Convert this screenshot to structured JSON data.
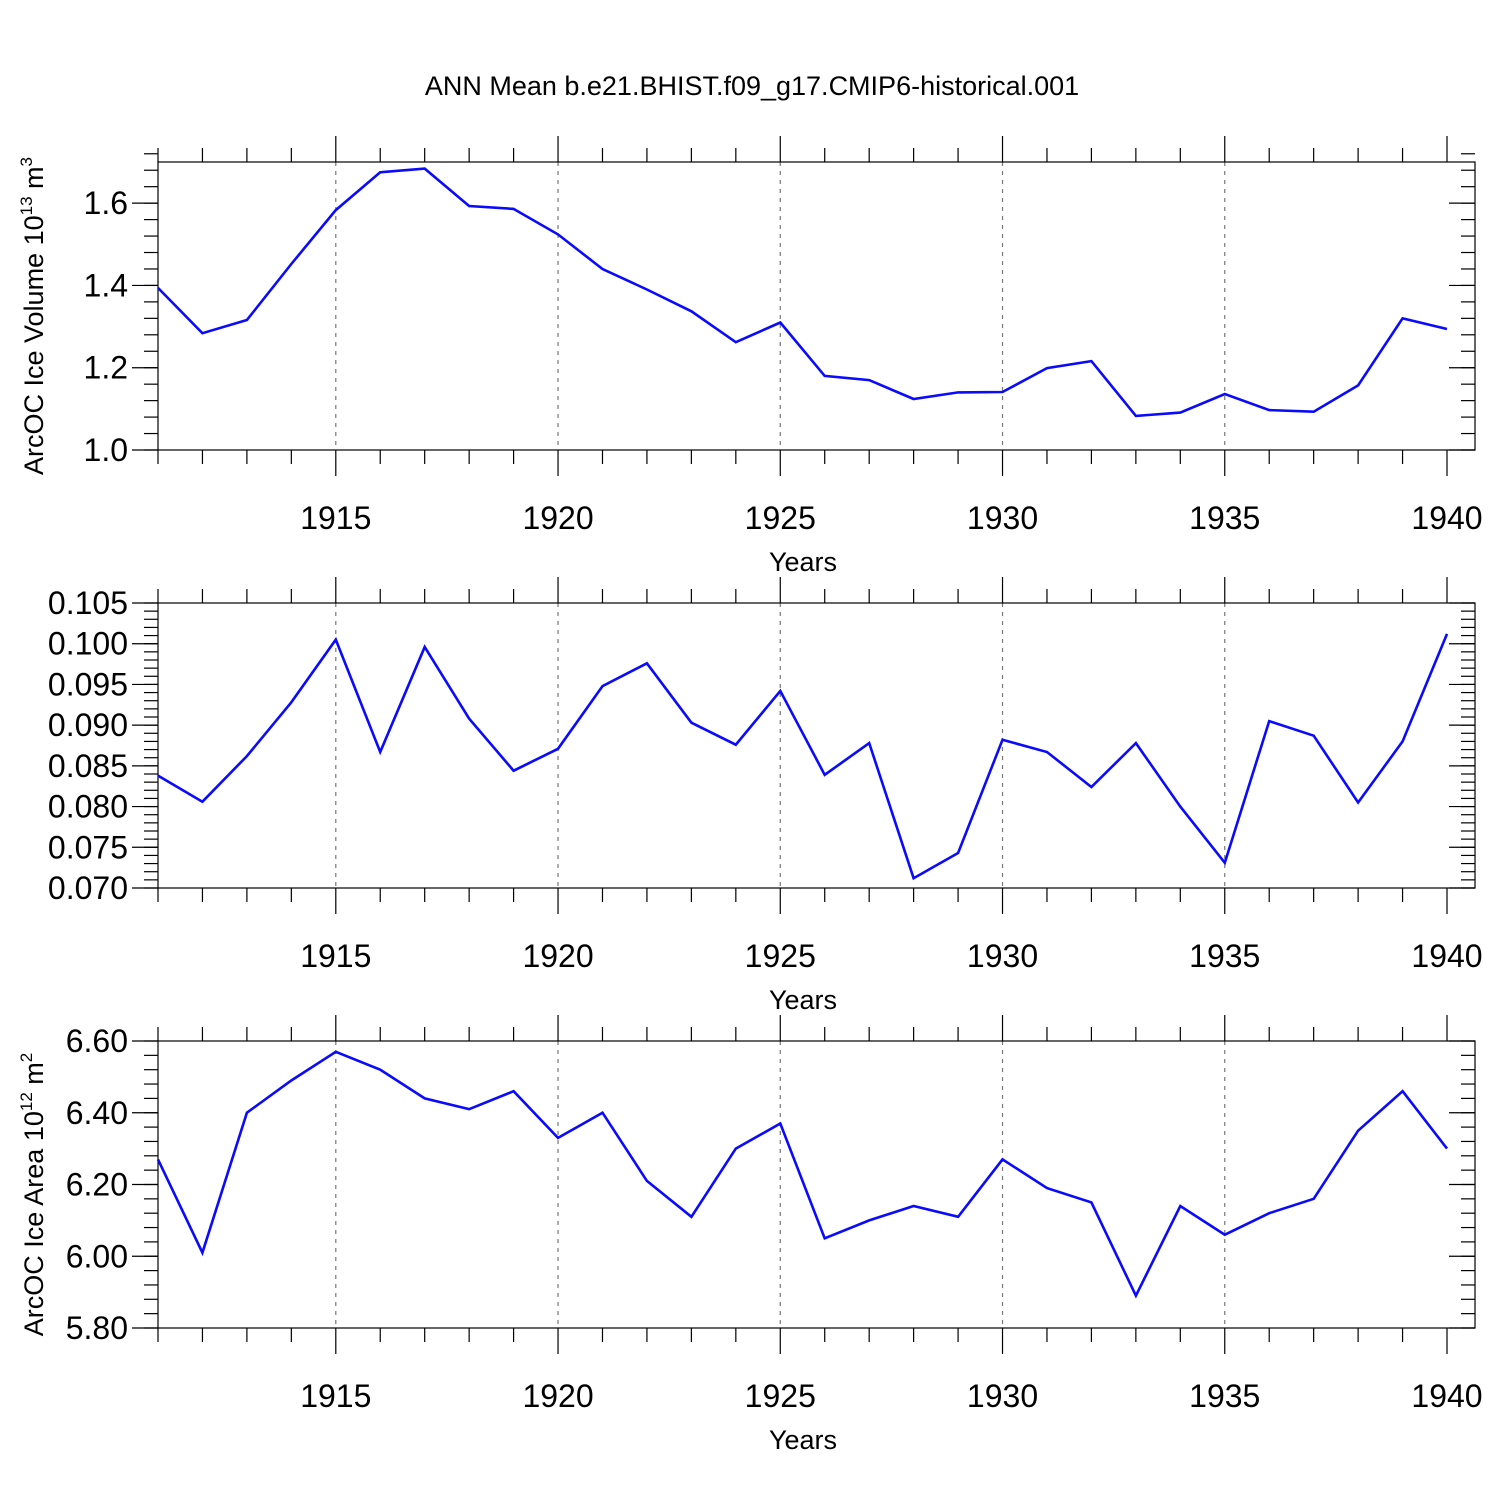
{
  "figure": {
    "title": "ANN Mean b.e21.BHIST.f09_g17.CMIP6-historical.001"
  },
  "colors": {
    "line": "#0a0aff",
    "axis": "#000000",
    "grid": "#777777"
  },
  "chart_data": [
    {
      "type": "line",
      "id": "volume",
      "ylabel": "ArcOC Ice Volume 10",
      "ylabel_superscript": "13",
      "ylabel_unit": " m",
      "ylabel_unit_superscript": "3",
      "xlabel": "Years",
      "xlim": [
        1911,
        1940
      ],
      "ylim": [
        1.0,
        1.7
      ],
      "x_major_ticks": [
        1915,
        1920,
        1925,
        1930,
        1935,
        1940
      ],
      "x_tick_labels": [
        "1915",
        "1920",
        "1925",
        "1930",
        "1935",
        "1940"
      ],
      "y_major_ticks": [
        1.0,
        1.2,
        1.4,
        1.6
      ],
      "y_tick_labels": [
        "1.0",
        "1.2",
        "1.4",
        "1.6"
      ],
      "y_minor_step": 0.04,
      "grid": "dashed vertical at major x ticks",
      "x": [
        1911,
        1912,
        1913,
        1914,
        1915,
        1916,
        1917,
        1918,
        1919,
        1920,
        1921,
        1922,
        1923,
        1924,
        1925,
        1926,
        1927,
        1928,
        1929,
        1930,
        1931,
        1932,
        1933,
        1934,
        1935,
        1936,
        1937,
        1938,
        1939,
        1940
      ],
      "values": [
        1.394,
        1.284,
        1.316,
        1.452,
        1.583,
        1.675,
        1.684,
        1.593,
        1.586,
        1.524,
        1.44,
        1.39,
        1.337,
        1.262,
        1.31,
        1.18,
        1.17,
        1.124,
        1.14,
        1.141,
        1.199,
        1.216,
        1.083,
        1.091,
        1.136,
        1.097,
        1.093,
        1.157,
        1.32,
        1.294
      ]
    },
    {
      "type": "line",
      "id": "thickness",
      "ylabel": "",
      "xlabel": "Years",
      "xlim": [
        1911,
        1940
      ],
      "ylim": [
        0.07,
        0.105
      ],
      "x_major_ticks": [
        1915,
        1920,
        1925,
        1930,
        1935,
        1940
      ],
      "x_tick_labels": [
        "1915",
        "1920",
        "1925",
        "1930",
        "1935",
        "1940"
      ],
      "y_major_ticks": [
        0.07,
        0.075,
        0.08,
        0.085,
        0.09,
        0.095,
        0.1,
        0.105
      ],
      "y_tick_labels": [
        "0.070",
        "0.075",
        "0.080",
        "0.085",
        "0.090",
        "0.095",
        "0.100",
        "0.105"
      ],
      "y_minor_step": 0.001,
      "grid": "dashed vertical at major x ticks",
      "x": [
        1911,
        1912,
        1913,
        1914,
        1915,
        1916,
        1917,
        1918,
        1919,
        1920,
        1921,
        1922,
        1923,
        1924,
        1925,
        1926,
        1927,
        1928,
        1929,
        1930,
        1931,
        1932,
        1933,
        1934,
        1935,
        1936,
        1937,
        1938,
        1939,
        1940
      ],
      "values": [
        0.0838,
        0.0806,
        0.0862,
        0.0928,
        0.1005,
        0.0867,
        0.0996,
        0.0908,
        0.0844,
        0.0871,
        0.0948,
        0.0976,
        0.0903,
        0.0876,
        0.0942,
        0.0839,
        0.0878,
        0.0712,
        0.0743,
        0.0882,
        0.0867,
        0.0824,
        0.0878,
        0.08,
        0.0731,
        0.0905,
        0.0887,
        0.0805,
        0.088,
        0.1012
      ]
    },
    {
      "type": "line",
      "id": "area",
      "ylabel": "ArcOC Ice Area 10",
      "ylabel_superscript": "12",
      "ylabel_unit": " m",
      "ylabel_unit_superscript": "2",
      "xlabel": "Years",
      "xlim": [
        1911,
        1940
      ],
      "ylim": [
        5.8,
        6.6
      ],
      "x_major_ticks": [
        1915,
        1920,
        1925,
        1930,
        1935,
        1940
      ],
      "x_tick_labels": [
        "1915",
        "1920",
        "1925",
        "1930",
        "1935",
        "1940"
      ],
      "y_major_ticks": [
        5.8,
        6.0,
        6.2,
        6.4,
        6.6
      ],
      "y_tick_labels": [
        "5.80",
        "6.00",
        "6.20",
        "6.40",
        "6.60"
      ],
      "y_minor_step": 0.04,
      "grid": "dashed vertical at major x ticks",
      "x": [
        1911,
        1912,
        1913,
        1914,
        1915,
        1916,
        1917,
        1918,
        1919,
        1920,
        1921,
        1922,
        1923,
        1924,
        1925,
        1926,
        1927,
        1928,
        1929,
        1930,
        1931,
        1932,
        1933,
        1934,
        1935,
        1936,
        1937,
        1938,
        1939,
        1940
      ],
      "values": [
        6.27,
        6.01,
        6.4,
        6.49,
        6.57,
        6.52,
        6.44,
        6.41,
        6.46,
        6.33,
        6.4,
        6.21,
        6.11,
        6.3,
        6.37,
        6.05,
        6.1,
        6.14,
        6.11,
        6.27,
        6.19,
        6.15,
        5.89,
        6.14,
        6.06,
        6.12,
        6.16,
        6.35,
        6.46,
        6.3
      ]
    }
  ]
}
